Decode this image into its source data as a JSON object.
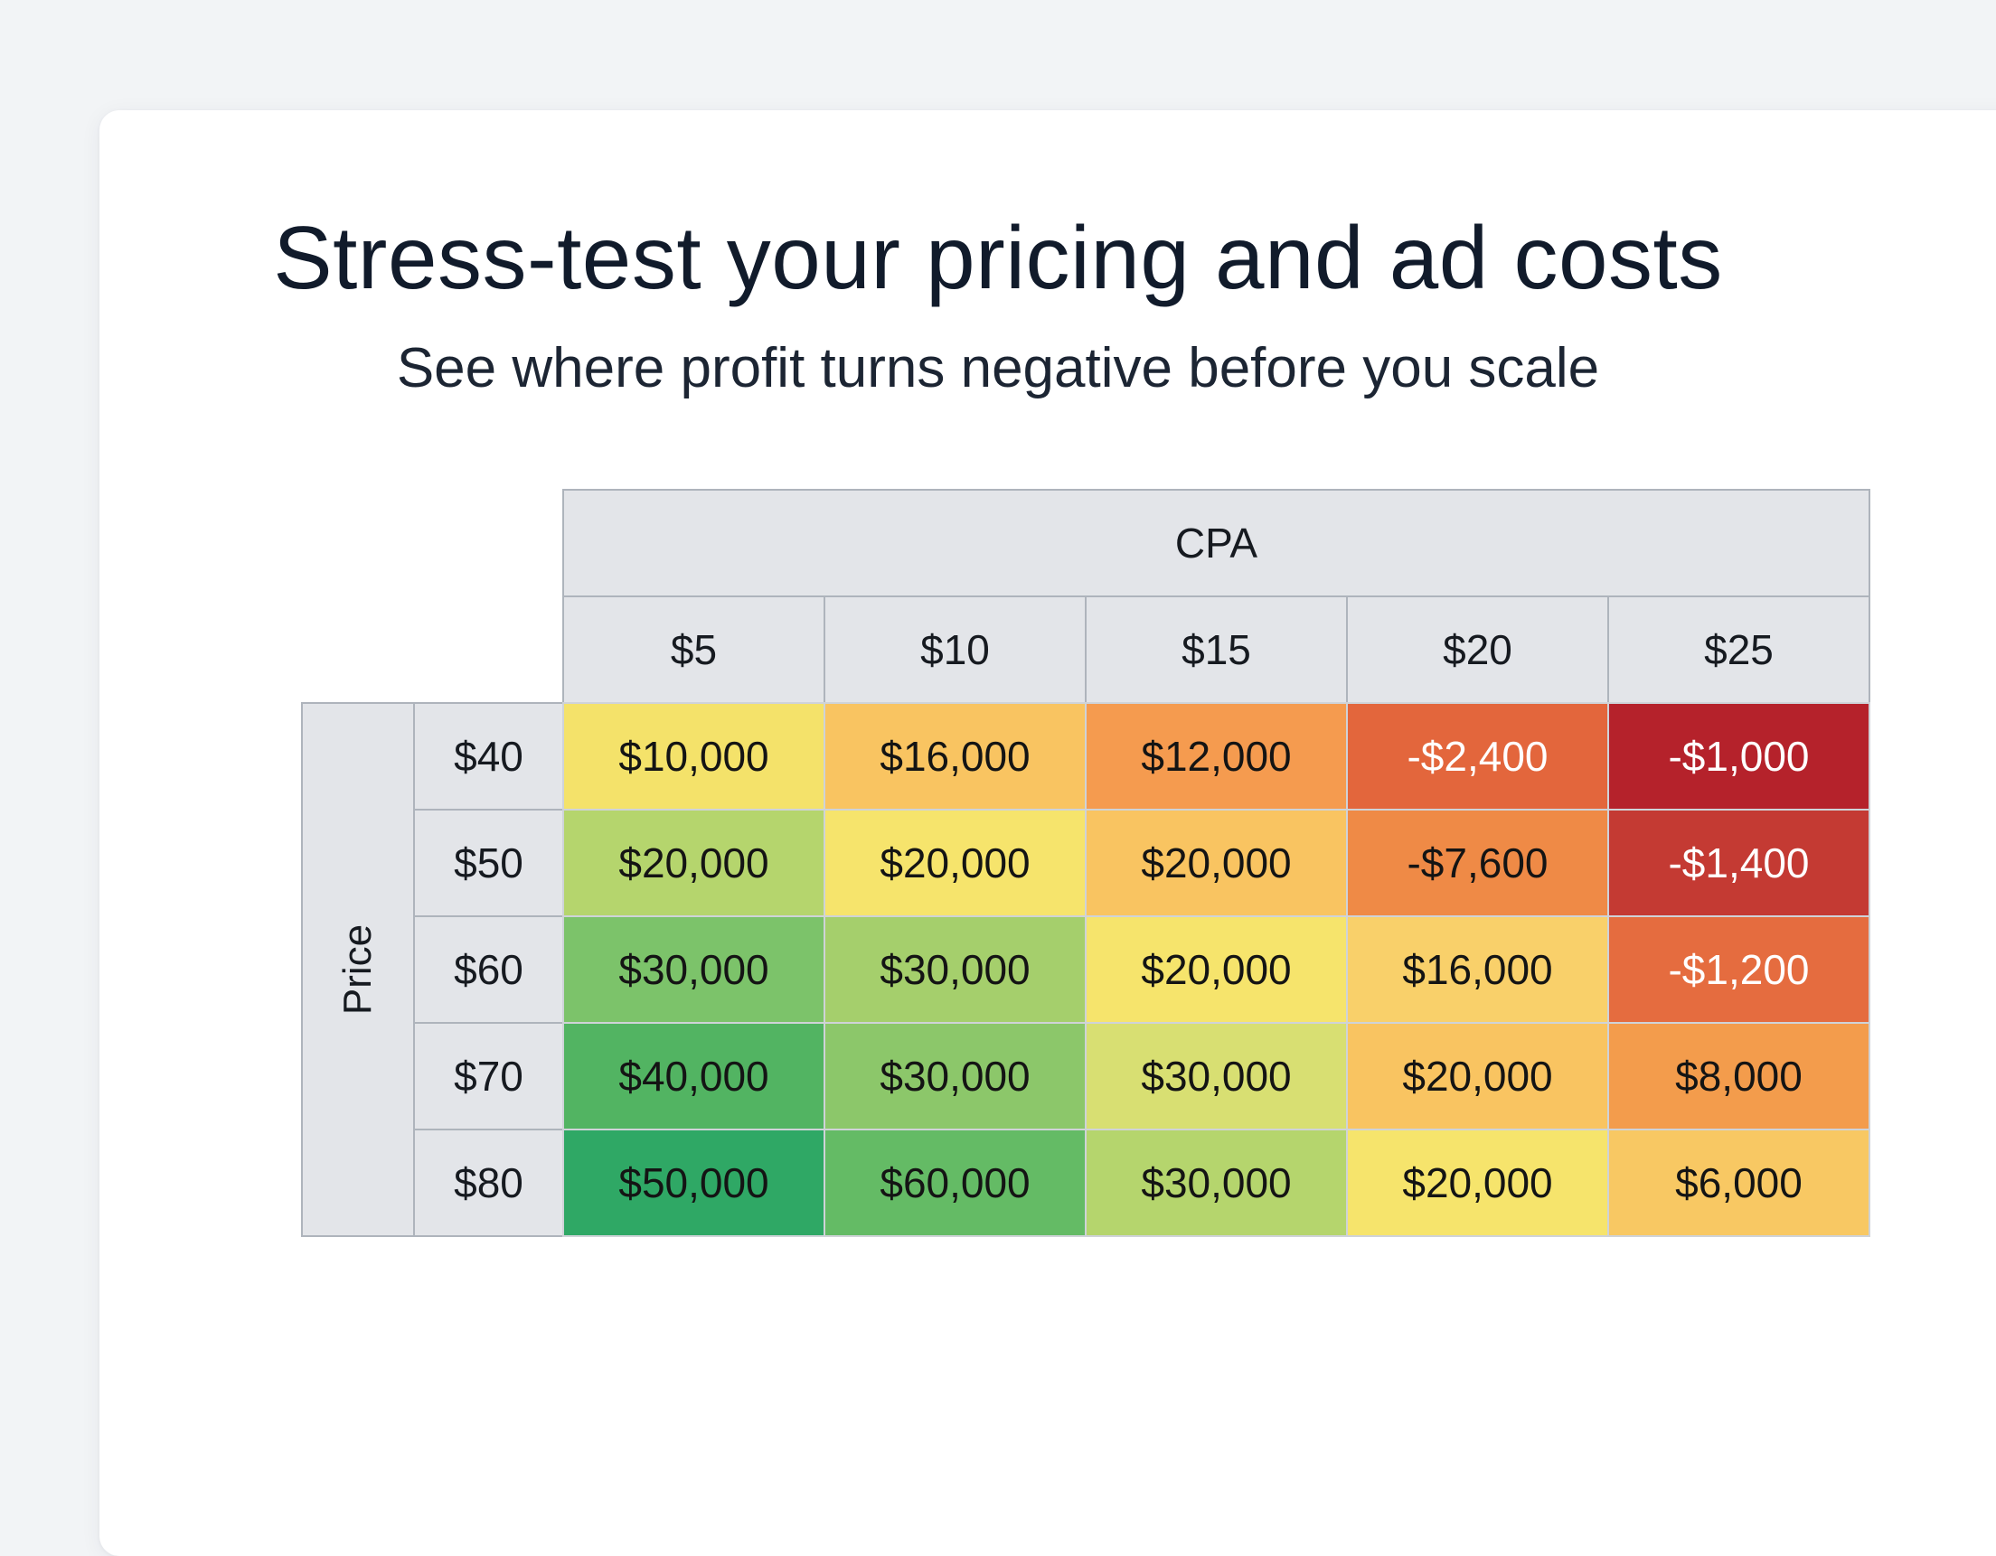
{
  "heading": {
    "title": "Stress-test your pricing and ad costs",
    "subtitle": "See where profit turns negative before you scale"
  },
  "chart_data": {
    "type": "heatmap",
    "title": "Stress-test your pricing and ad costs",
    "subtitle": "See where profit turns negative before you scale",
    "xlabel": "CPA",
    "ylabel": "Price",
    "x": [
      "$5",
      "$10",
      "$15",
      "$20",
      "$25"
    ],
    "y": [
      "$40",
      "$50",
      "$60",
      "$70",
      "$80"
    ],
    "values": [
      [
        10000,
        16000,
        12000,
        -2400,
        -1000
      ],
      [
        20000,
        20000,
        20000,
        -7600,
        -1400
      ],
      [
        30000,
        30000,
        20000,
        16000,
        -1200
      ],
      [
        40000,
        30000,
        30000,
        20000,
        8000
      ],
      [
        50000,
        60000,
        30000,
        20000,
        6000
      ]
    ],
    "cell_labels": [
      [
        "$10,000",
        "$16,000",
        "$12,000",
        "-$2,400",
        "-$1,000"
      ],
      [
        "$20,000",
        "$20,000",
        "$20,000",
        "-$7,600",
        "-$1,400"
      ],
      [
        "$30,000",
        "$30,000",
        "$20,000",
        "$16,000",
        "-$1,200"
      ],
      [
        "$40,000",
        "$30,000",
        "$30,000",
        "$20,000",
        "$8,000"
      ],
      [
        "$50,000",
        "$60,000",
        "$30,000",
        "$20,000",
        "$6,000"
      ]
    ],
    "cell_colors": [
      [
        "#f4e26a",
        "#f9c461",
        "#f59b4f",
        "#e3663c",
        "#b5222b"
      ],
      [
        "#b5d56d",
        "#f6e46c",
        "#f9c461",
        "#ef8a46",
        "#c43a33"
      ],
      [
        "#7cc36a",
        "#a5cf6c",
        "#f6e46c",
        "#f9d06a",
        "#e56c3f"
      ],
      [
        "#52b462",
        "#8cc76a",
        "#d8df72",
        "#f9c461",
        "#f39c4c"
      ],
      [
        "#2fa865",
        "#64bb65",
        "#b5d56d",
        "#f6e46c",
        "#f8c863"
      ]
    ],
    "legend": "none",
    "grid": true
  }
}
